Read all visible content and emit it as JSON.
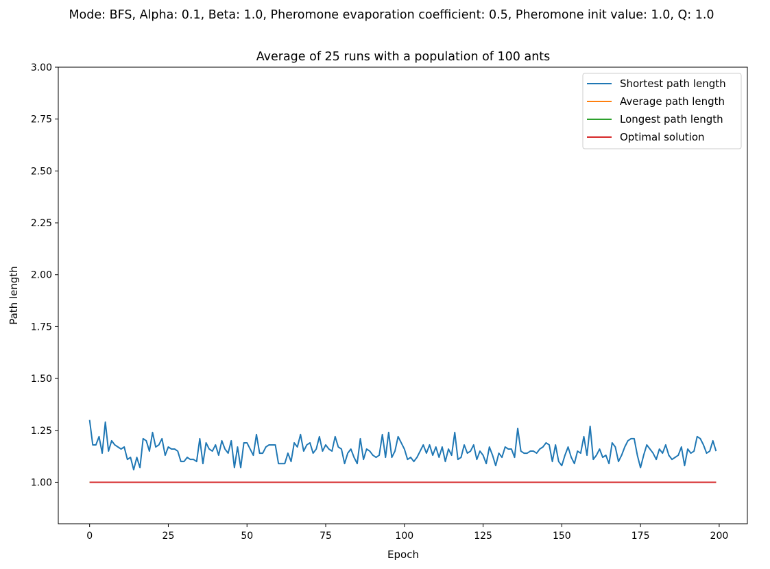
{
  "suptitle": "Mode: BFS, Alpha: 0.1, Beta: 1.0, Pheromone evaporation coefficient: 0.5, Pheromone init value: 1.0, Q: 1.0",
  "chart_data": {
    "type": "line",
    "title": "Average of 25 runs with a population of 100 ants",
    "xlabel": "Epoch",
    "ylabel": "Path length",
    "xlim": [
      -9.95,
      208.95
    ],
    "ylim": [
      0.8,
      3.0
    ],
    "xticks": [
      0,
      25,
      50,
      75,
      100,
      125,
      150,
      175,
      200
    ],
    "yticks": [
      1.0,
      1.25,
      1.5,
      1.75,
      2.0,
      2.25,
      2.5,
      2.75,
      3.0
    ],
    "ytick_labels": [
      "1.00",
      "1.25",
      "1.50",
      "1.75",
      "2.00",
      "2.25",
      "2.50",
      "2.75",
      "3.00"
    ],
    "grid": false,
    "legend_position": "top-right",
    "series": [
      {
        "name": "Shortest path length",
        "color": "#1f77b4",
        "x_start": 0,
        "values": [
          1.3,
          1.18,
          1.18,
          1.22,
          1.14,
          1.29,
          1.15,
          1.2,
          1.18,
          1.17,
          1.16,
          1.17,
          1.11,
          1.12,
          1.06,
          1.12,
          1.07,
          1.21,
          1.2,
          1.15,
          1.24,
          1.17,
          1.18,
          1.21,
          1.13,
          1.17,
          1.16,
          1.16,
          1.15,
          1.1,
          1.1,
          1.12,
          1.11,
          1.11,
          1.1,
          1.21,
          1.09,
          1.19,
          1.16,
          1.15,
          1.18,
          1.13,
          1.2,
          1.16,
          1.14,
          1.2,
          1.07,
          1.17,
          1.07,
          1.19,
          1.19,
          1.16,
          1.13,
          1.23,
          1.14,
          1.14,
          1.17,
          1.18,
          1.18,
          1.18,
          1.09,
          1.09,
          1.09,
          1.14,
          1.1,
          1.19,
          1.17,
          1.23,
          1.15,
          1.18,
          1.19,
          1.14,
          1.16,
          1.22,
          1.15,
          1.18,
          1.16,
          1.15,
          1.22,
          1.17,
          1.16,
          1.09,
          1.14,
          1.16,
          1.12,
          1.09,
          1.21,
          1.11,
          1.16,
          1.15,
          1.13,
          1.12,
          1.13,
          1.23,
          1.12,
          1.24,
          1.12,
          1.15,
          1.22,
          1.19,
          1.16,
          1.11,
          1.12,
          1.1,
          1.12,
          1.15,
          1.18,
          1.14,
          1.18,
          1.13,
          1.17,
          1.12,
          1.17,
          1.1,
          1.16,
          1.13,
          1.24,
          1.11,
          1.12,
          1.18,
          1.14,
          1.15,
          1.18,
          1.11,
          1.15,
          1.13,
          1.09,
          1.17,
          1.13,
          1.08,
          1.14,
          1.12,
          1.17,
          1.16,
          1.16,
          1.12,
          1.26,
          1.15,
          1.14,
          1.14,
          1.15,
          1.15,
          1.14,
          1.16,
          1.17,
          1.19,
          1.18,
          1.1,
          1.18,
          1.1,
          1.08,
          1.13,
          1.17,
          1.12,
          1.09,
          1.15,
          1.14,
          1.22,
          1.13,
          1.27,
          1.11,
          1.13,
          1.16,
          1.12,
          1.13,
          1.09,
          1.19,
          1.17,
          1.1,
          1.13,
          1.17,
          1.2,
          1.21,
          1.21,
          1.13,
          1.07,
          1.13,
          1.18,
          1.16,
          1.14,
          1.11,
          1.16,
          1.14,
          1.18,
          1.13,
          1.11,
          1.12,
          1.13,
          1.17,
          1.08,
          1.16,
          1.14,
          1.15,
          1.22,
          1.21,
          1.18,
          1.14,
          1.15,
          1.2,
          1.15
        ]
      },
      {
        "name": "Average path length",
        "color": "#ff7f0e",
        "x": [
          0,
          199
        ],
        "values": [
          1.0,
          1.0
        ]
      },
      {
        "name": "Longest path length",
        "color": "#2ca02c",
        "x": [
          0,
          199
        ],
        "values": [
          1.0,
          1.0
        ]
      },
      {
        "name": "Optimal solution",
        "color": "#d62728",
        "x": [
          0,
          199
        ],
        "values": [
          1.0,
          1.0
        ]
      }
    ]
  }
}
